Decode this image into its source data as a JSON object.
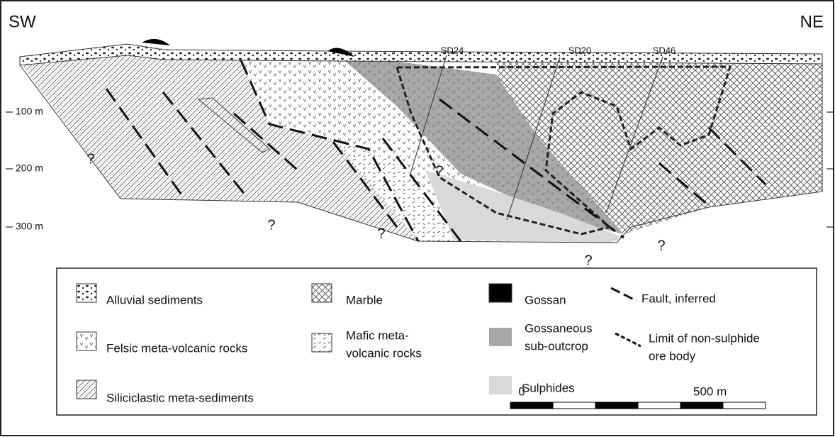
{
  "sides": {
    "left": "SW",
    "right": "NE"
  },
  "boreholes": [
    "SD24",
    "SD20",
    "SD46"
  ],
  "depths": [
    "100 m",
    "200 m",
    "300 m"
  ],
  "unknowns": [
    "?",
    "?",
    "?",
    "?",
    "?",
    "?"
  ],
  "legend": [
    {
      "lines": [
        "Alluvial sediments"
      ]
    },
    {
      "lines": [
        "Felsic meta-volcanic rocks"
      ]
    },
    {
      "lines": [
        "Siliciclastic meta-sediments"
      ]
    },
    {
      "lines": [
        "Marble"
      ]
    },
    {
      "lines": [
        "Mafic meta-",
        "volcanic rocks"
      ]
    },
    {
      "lines": [
        "Gossan"
      ]
    },
    {
      "lines": [
        "Gossaneous",
        "sub-outcrop"
      ]
    },
    {
      "lines": [
        "Sulphides"
      ]
    },
    {
      "lines": [
        "Fault, inferred"
      ]
    },
    {
      "lines": [
        "Limit of non-sulphide",
        "ore body"
      ]
    }
  ],
  "scale": {
    "start": "0",
    "end": "500 m"
  }
}
